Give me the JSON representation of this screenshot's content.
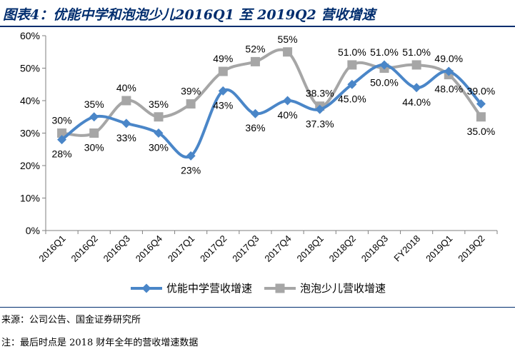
{
  "header": {
    "title": "图表4：优能中学和泡泡少儿2016Q1 至 2019Q2 营收增速"
  },
  "footer": {
    "source": "来源：公司公告、国金证券研究所",
    "note": "注：最后时点是 2018 财年全年的营收增速数据"
  },
  "chart_data": {
    "type": "line",
    "title": "",
    "xlabel": "",
    "ylabel": "",
    "ylim": [
      0,
      60
    ],
    "yticks": [
      "0%",
      "10%",
      "20%",
      "30%",
      "40%",
      "50%",
      "60%"
    ],
    "grid": false,
    "legend_position": "bottom",
    "categories": [
      "2016Q1",
      "2016Q2",
      "2016Q3",
      "2016Q4",
      "2017Q1",
      "2017Q2",
      "2017Q3",
      "2017Q4",
      "2018Q1",
      "2018Q2",
      "2018Q3",
      "FY2018",
      "2019Q1",
      "2019Q2"
    ],
    "series": [
      {
        "name": "优能中学营收增速",
        "color": "#4a86c8",
        "marker": "diamond",
        "values": [
          28,
          35,
          33,
          30,
          23,
          43,
          36,
          40,
          37.3,
          45.0,
          51.0,
          44.0,
          49.0,
          39.0
        ],
        "labels": [
          "28%",
          "35%",
          "33%",
          "30%",
          "23%",
          "43%",
          "36%",
          "40%",
          "37.3%",
          "45.0%",
          "51.0%",
          "44.0%",
          "49.0%",
          "39.0%"
        ]
      },
      {
        "name": "泡泡少儿营收增速",
        "color": "#a6a6a6",
        "marker": "square",
        "values": [
          30,
          30,
          40,
          35,
          39,
          49,
          52,
          55,
          38.3,
          51.0,
          50.0,
          51.0,
          48.0,
          35.0
        ],
        "labels": [
          "30%",
          "30%",
          "40%",
          "35%",
          "39%",
          "49%",
          "52%",
          "55%",
          "38.3%",
          "51.0%",
          "50.0%",
          "51.0%",
          "48.0%",
          "35.0%"
        ]
      }
    ]
  }
}
